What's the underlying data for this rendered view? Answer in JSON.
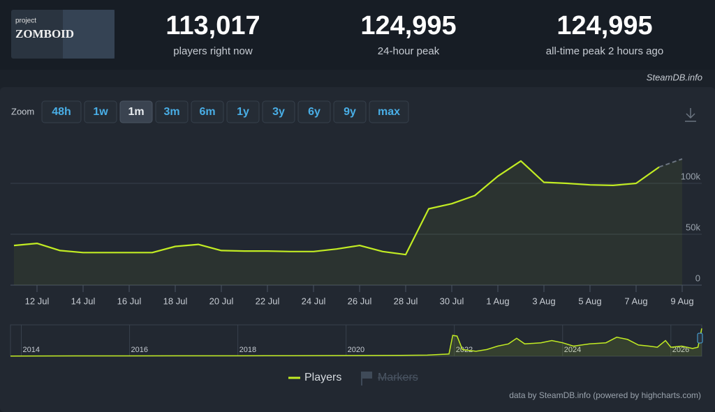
{
  "header": {
    "logo": {
      "line1": "project",
      "line2": "ZOMBOID"
    },
    "stats": [
      {
        "value": "113,017",
        "label": "players right now"
      },
      {
        "value": "124,995",
        "label": "24-hour peak"
      },
      {
        "value": "124,995",
        "label": "all-time peak 2 hours ago"
      }
    ]
  },
  "source": "SteamDB.info",
  "zoom": {
    "label": "Zoom",
    "buttons": [
      "48h",
      "1w",
      "1m",
      "3m",
      "6m",
      "1y",
      "3y",
      "6y",
      "9y",
      "max"
    ],
    "active": "1m"
  },
  "chart_data": [
    {
      "type": "line",
      "x": [
        null,
        "12 Jul",
        null,
        "14 Jul",
        null,
        "16 Jul",
        null,
        "18 Jul",
        null,
        "20 Jul",
        null,
        "22 Jul",
        null,
        "24 Jul",
        null,
        "26 Jul",
        null,
        "28 Jul",
        null,
        "30 Jul",
        null,
        "1 Aug",
        null,
        "3 Aug",
        null,
        "5 Aug",
        null,
        "7 Aug",
        null,
        "9 Aug"
      ],
      "series": [
        {
          "name": "Players",
          "color": "#c2ec23",
          "values": [
            39000,
            41000,
            34000,
            32000,
            32000,
            32000,
            32000,
            38000,
            40000,
            34000,
            33500,
            33500,
            33000,
            33000,
            35500,
            39000,
            33000,
            30000,
            75000,
            80000,
            88000,
            107000,
            122000,
            101000,
            100000,
            98500,
            98000,
            100000,
            116000,
            124000
          ]
        }
      ],
      "dashed_last_segment": true,
      "ylim": [
        0,
        150000
      ],
      "yticks": [
        0,
        {
          "value": 50000,
          "label": "50k"
        },
        {
          "value": 100000,
          "label": "100k"
        }
      ],
      "grid": true,
      "markers_label": "Markers"
    },
    {
      "type": "navigator",
      "x": [
        2013.8,
        2015,
        2016,
        2017,
        2018,
        2019,
        2020,
        2021,
        2021.5,
        2021.9,
        2021.97,
        2022.05,
        2022.15,
        2022.4,
        2022.6,
        2022.8,
        2023.0,
        2023.15,
        2023.3,
        2023.6,
        2023.8,
        2024.0,
        2024.2,
        2024.5,
        2024.8,
        2025.0,
        2025.2,
        2025.4,
        2025.6,
        2025.75,
        2025.9,
        2026.0,
        2026.2,
        2026.4,
        2026.5,
        2026.57
      ],
      "series": [
        {
          "name": "Players",
          "color": "#c2ec23",
          "values": [
            1000,
            1500,
            1500,
            2000,
            2000,
            2500,
            3000,
            4000,
            5000,
            10000,
            93000,
            90000,
            30000,
            22000,
            30000,
            45000,
            55000,
            80000,
            55000,
            60000,
            70000,
            60000,
            45000,
            55000,
            60000,
            85000,
            75000,
            50000,
            45000,
            40000,
            70000,
            40000,
            45000,
            35000,
            40000,
            124000
          ]
        }
      ],
      "xlim": [
        2013.8,
        2026.57
      ],
      "xticks": [
        2014,
        2016,
        2018,
        2020,
        2022,
        2024,
        2026
      ],
      "ylim": [
        0,
        140000
      ]
    }
  ],
  "credits": "data by SteamDB.info (powered by highcharts.com)"
}
